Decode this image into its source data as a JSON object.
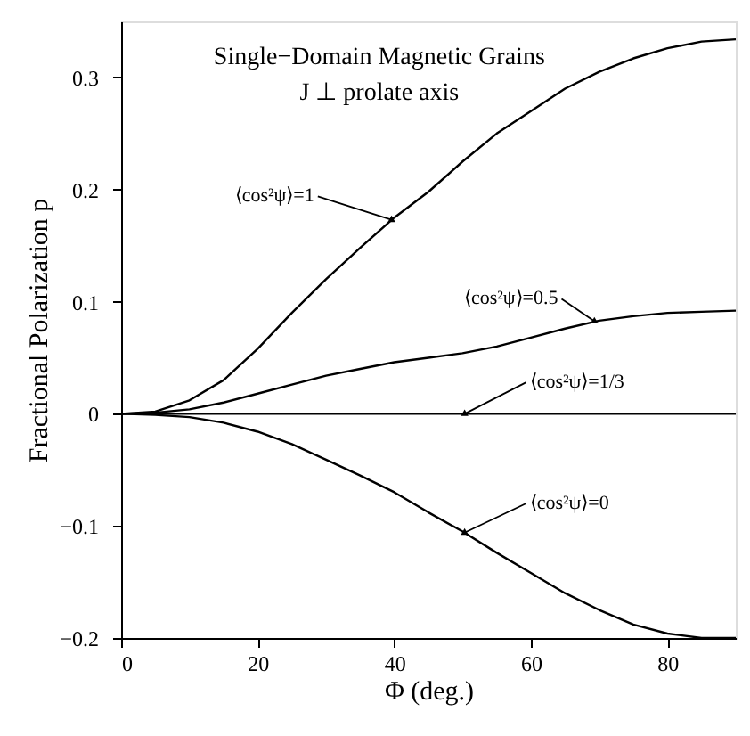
{
  "chart_data": {
    "type": "line",
    "title": "Single−Domain Magnetic Grains",
    "subtitle": "J ⊥ prolate axis",
    "xlabel": "Φ (deg.)",
    "ylabel": "Fractional Polarization p",
    "x": [
      0,
      5,
      10,
      15,
      20,
      25,
      30,
      35,
      40,
      45,
      50,
      55,
      60,
      65,
      70,
      75,
      80,
      85,
      90
    ],
    "series": [
      {
        "color": "#000000",
        "values": [
          0,
          0.002,
          0.012,
          0.03,
          0.058,
          0.09,
          0.12,
          0.148,
          0.175,
          0.198,
          0.225,
          0.25,
          0.27,
          0.29,
          0.305,
          0.317,
          0.326,
          0.332,
          0.334
        ]
      },
      {
        "color": "#000000",
        "values": [
          0,
          0.001,
          0.004,
          0.01,
          0.018,
          0.026,
          0.034,
          0.04,
          0.046,
          0.05,
          0.054,
          0.06,
          0.068,
          0.076,
          0.083,
          0.087,
          0.09,
          0.091,
          0.092
        ]
      },
      {
        "color": "#000000",
        "values": [
          0,
          0,
          0,
          0,
          0,
          0,
          0,
          0,
          0,
          0,
          0,
          0,
          0,
          0,
          0,
          0,
          0,
          0,
          0
        ]
      },
      {
        "color": "#000000",
        "values": [
          0,
          -0.001,
          -0.003,
          -0.008,
          -0.016,
          -0.027,
          -0.041,
          -0.055,
          -0.07,
          -0.088,
          -0.105,
          -0.124,
          -0.142,
          -0.16,
          -0.175,
          -0.188,
          -0.196,
          -0.2,
          -0.2
        ]
      }
    ],
    "annotations": [
      {
        "text": "⟨cos²ψ⟩=1",
        "x": 39.6,
        "y": 0.173
      },
      {
        "text": "⟨cos²ψ⟩=0.5",
        "x": 69.3,
        "y": 0.0825
      },
      {
        "text": "⟨cos²ψ⟩=1/3",
        "x": 50.3,
        "y": 0
      },
      {
        "text": "⟨cos²ψ⟩=0",
        "x": 50.3,
        "y": -0.106
      }
    ],
    "xlim": [
      0,
      90
    ],
    "xticks": [
      0,
      20,
      40,
      60,
      80
    ],
    "ylim": [
      -0.2,
      0.35
    ],
    "yticks": [
      -0.2,
      -0.1,
      0,
      0.1,
      0.2,
      0.3
    ],
    "grid": false,
    "marker": "none",
    "line_style": "solid"
  }
}
